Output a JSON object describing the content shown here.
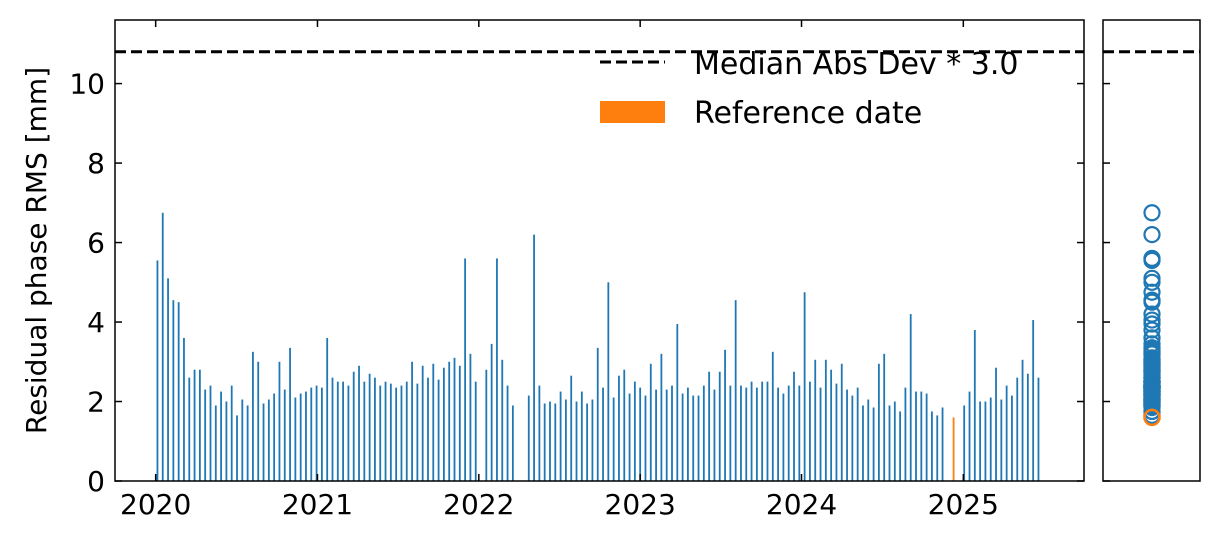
{
  "chart_data": {
    "type": "bar",
    "ylabel": "Residual phase RMS [mm]",
    "ylim": [
      0,
      11.6
    ],
    "yticks": [
      0,
      2,
      4,
      6,
      8,
      10
    ],
    "xlim": [
      "2019-10-01",
      "2025-10-01"
    ],
    "xticks": [
      "2020",
      "2021",
      "2022",
      "2023",
      "2024",
      "2025"
    ],
    "threshold": {
      "label": "Median Abs Dev * 3.0",
      "value": 10.8,
      "color": "#000000",
      "style": "dashed"
    },
    "legend": {
      "placement": "top-right",
      "items": [
        {
          "label": "Median Abs Dev * 3.0",
          "kind": "dashed-line",
          "color": "#000000"
        },
        {
          "label": "Reference date",
          "kind": "patch",
          "color": "#ff7f0e"
        }
      ]
    },
    "reference": {
      "date": "2024-12-10",
      "value": 1.6,
      "color": "#ff7f0e"
    },
    "series_color": "#1f77b4",
    "series": [
      {
        "values": [
          [
            "2020-01-05",
            5.55
          ],
          [
            "2020-01-17",
            6.75
          ],
          [
            "2020-01-29",
            5.1
          ],
          [
            "2020-02-10",
            4.55
          ],
          [
            "2020-02-22",
            4.5
          ],
          [
            "2020-03-05",
            3.6
          ],
          [
            "2020-03-17",
            2.6
          ],
          [
            "2020-03-29",
            2.8
          ],
          [
            "2020-04-10",
            2.8
          ],
          [
            "2020-04-22",
            2.3
          ],
          [
            "2020-05-04",
            2.4
          ],
          [
            "2020-05-16",
            1.9
          ],
          [
            "2020-05-28",
            2.25
          ],
          [
            "2020-06-09",
            2.0
          ],
          [
            "2020-06-21",
            2.4
          ],
          [
            "2020-07-03",
            1.65
          ],
          [
            "2020-07-15",
            2.05
          ],
          [
            "2020-07-27",
            1.9
          ],
          [
            "2020-08-08",
            3.25
          ],
          [
            "2020-08-20",
            3.0
          ],
          [
            "2020-09-01",
            1.95
          ],
          [
            "2020-09-13",
            2.05
          ],
          [
            "2020-09-25",
            2.2
          ],
          [
            "2020-10-07",
            3.0
          ],
          [
            "2020-10-19",
            2.3
          ],
          [
            "2020-10-31",
            3.35
          ],
          [
            "2020-11-12",
            2.1
          ],
          [
            "2020-11-24",
            2.2
          ],
          [
            "2020-12-06",
            2.25
          ],
          [
            "2020-12-18",
            2.35
          ],
          [
            "2020-12-30",
            2.4
          ],
          [
            "2021-01-11",
            2.35
          ],
          [
            "2021-01-23",
            3.6
          ],
          [
            "2021-02-04",
            2.6
          ],
          [
            "2021-02-16",
            2.5
          ],
          [
            "2021-02-28",
            2.5
          ],
          [
            "2021-03-12",
            2.4
          ],
          [
            "2021-03-24",
            2.75
          ],
          [
            "2021-04-05",
            2.9
          ],
          [
            "2021-04-17",
            2.5
          ],
          [
            "2021-04-29",
            2.7
          ],
          [
            "2021-05-11",
            2.6
          ],
          [
            "2021-05-23",
            2.4
          ],
          [
            "2021-06-04",
            2.5
          ],
          [
            "2021-06-16",
            2.45
          ],
          [
            "2021-06-28",
            2.35
          ],
          [
            "2021-07-10",
            2.4
          ],
          [
            "2021-07-22",
            2.5
          ],
          [
            "2021-08-03",
            3.0
          ],
          [
            "2021-08-15",
            2.45
          ],
          [
            "2021-08-27",
            2.9
          ],
          [
            "2021-09-08",
            2.6
          ],
          [
            "2021-09-20",
            2.95
          ],
          [
            "2021-10-02",
            2.55
          ],
          [
            "2021-10-14",
            2.85
          ],
          [
            "2021-10-26",
            3.0
          ],
          [
            "2021-11-07",
            3.1
          ],
          [
            "2021-11-19",
            2.9
          ],
          [
            "2021-12-01",
            5.6
          ],
          [
            "2021-12-13",
            3.2
          ],
          [
            "2021-12-25",
            2.5
          ],
          [
            "2022-01-18",
            2.8
          ],
          [
            "2022-01-30",
            3.45
          ],
          [
            "2022-02-11",
            5.6
          ],
          [
            "2022-02-23",
            3.05
          ],
          [
            "2022-03-07",
            2.4
          ],
          [
            "2022-03-19",
            1.9
          ],
          [
            "2022-04-24",
            2.15
          ],
          [
            "2022-05-06",
            6.2
          ],
          [
            "2022-05-18",
            2.4
          ],
          [
            "2022-05-30",
            1.95
          ],
          [
            "2022-06-11",
            2.0
          ],
          [
            "2022-06-23",
            1.95
          ],
          [
            "2022-07-05",
            2.25
          ],
          [
            "2022-07-17",
            2.05
          ],
          [
            "2022-07-29",
            2.65
          ],
          [
            "2022-08-10",
            2.0
          ],
          [
            "2022-08-22",
            2.25
          ],
          [
            "2022-09-03",
            1.95
          ],
          [
            "2022-09-15",
            2.05
          ],
          [
            "2022-09-27",
            3.35
          ],
          [
            "2022-10-09",
            2.35
          ],
          [
            "2022-10-21",
            5.0
          ],
          [
            "2022-11-02",
            2.1
          ],
          [
            "2022-11-14",
            2.65
          ],
          [
            "2022-11-26",
            2.8
          ],
          [
            "2022-12-08",
            2.2
          ],
          [
            "2022-12-20",
            2.5
          ],
          [
            "2023-01-01",
            2.35
          ],
          [
            "2023-01-13",
            2.15
          ],
          [
            "2023-01-25",
            2.95
          ],
          [
            "2023-02-06",
            2.3
          ],
          [
            "2023-02-18",
            3.2
          ],
          [
            "2023-03-02",
            2.3
          ],
          [
            "2023-03-14",
            2.4
          ],
          [
            "2023-03-26",
            3.95
          ],
          [
            "2023-04-07",
            2.2
          ],
          [
            "2023-04-19",
            2.35
          ],
          [
            "2023-05-01",
            2.15
          ],
          [
            "2023-05-13",
            2.15
          ],
          [
            "2023-05-25",
            2.4
          ],
          [
            "2023-06-06",
            2.75
          ],
          [
            "2023-06-18",
            2.3
          ],
          [
            "2023-06-30",
            2.75
          ],
          [
            "2023-07-12",
            3.3
          ],
          [
            "2023-07-24",
            2.4
          ],
          [
            "2023-08-05",
            4.55
          ],
          [
            "2023-08-17",
            2.4
          ],
          [
            "2023-08-29",
            2.35
          ],
          [
            "2023-09-10",
            2.5
          ],
          [
            "2023-09-22",
            2.35
          ],
          [
            "2023-10-04",
            2.5
          ],
          [
            "2023-10-16",
            2.5
          ],
          [
            "2023-10-28",
            3.25
          ],
          [
            "2023-11-09",
            2.35
          ],
          [
            "2023-11-21",
            2.2
          ],
          [
            "2023-12-03",
            2.4
          ],
          [
            "2023-12-15",
            2.75
          ],
          [
            "2023-12-27",
            2.4
          ],
          [
            "2024-01-08",
            4.75
          ],
          [
            "2024-01-20",
            2.5
          ],
          [
            "2024-02-01",
            3.05
          ],
          [
            "2024-02-13",
            2.35
          ],
          [
            "2024-02-25",
            3.05
          ],
          [
            "2024-03-08",
            2.8
          ],
          [
            "2024-03-20",
            2.45
          ],
          [
            "2024-04-01",
            2.95
          ],
          [
            "2024-04-13",
            2.3
          ],
          [
            "2024-04-25",
            2.15
          ],
          [
            "2024-05-07",
            2.35
          ],
          [
            "2024-05-19",
            1.9
          ],
          [
            "2024-05-31",
            2.05
          ],
          [
            "2024-06-12",
            1.85
          ],
          [
            "2024-06-24",
            2.95
          ],
          [
            "2024-07-06",
            3.2
          ],
          [
            "2024-07-18",
            1.9
          ],
          [
            "2024-07-30",
            2.0
          ],
          [
            "2024-08-11",
            1.75
          ],
          [
            "2024-08-23",
            2.35
          ],
          [
            "2024-09-04",
            4.2
          ],
          [
            "2024-09-16",
            2.25
          ],
          [
            "2024-09-28",
            2.25
          ],
          [
            "2024-10-10",
            2.2
          ],
          [
            "2024-10-22",
            1.75
          ],
          [
            "2024-11-03",
            1.65
          ],
          [
            "2024-11-15",
            1.85
          ],
          [
            "2024-12-10",
            1.6
          ],
          [
            "2025-01-03",
            1.9
          ],
          [
            "2025-01-15",
            2.25
          ],
          [
            "2025-01-27",
            3.8
          ],
          [
            "2025-02-08",
            2.0
          ],
          [
            "2025-02-20",
            2.0
          ],
          [
            "2025-03-04",
            2.1
          ],
          [
            "2025-03-16",
            2.85
          ],
          [
            "2025-03-28",
            2.05
          ],
          [
            "2025-04-09",
            2.4
          ],
          [
            "2025-04-21",
            2.15
          ],
          [
            "2025-05-03",
            2.6
          ],
          [
            "2025-05-15",
            3.05
          ],
          [
            "2025-05-27",
            2.7
          ],
          [
            "2025-06-08",
            4.05
          ],
          [
            "2025-06-20",
            2.6
          ]
        ]
      }
    ],
    "side_panel": {
      "type": "scatter",
      "marker": "open-circle",
      "color": "#1f77b4",
      "highlight_color": "#ff7f0e"
    }
  }
}
